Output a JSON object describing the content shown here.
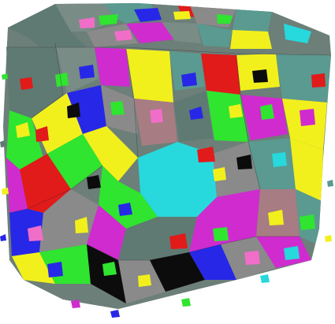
{
  "image": {
    "subject": "3d-polycrystal-grain-structure",
    "palette": {
      "background": "#ffffff",
      "yellow": "#f2f01c",
      "green": "#2fe52f",
      "cyan": "#27d8dc",
      "magenta": "#cf2bcf",
      "blue": "#2727e8",
      "red": "#e11a1a",
      "gray": "#8a8a8a",
      "slate": "#5f7a73",
      "teal": "#5a9a90",
      "mauve": "#a77c82",
      "black": "#0c0c0c",
      "pink": "#f06ec8"
    }
  }
}
